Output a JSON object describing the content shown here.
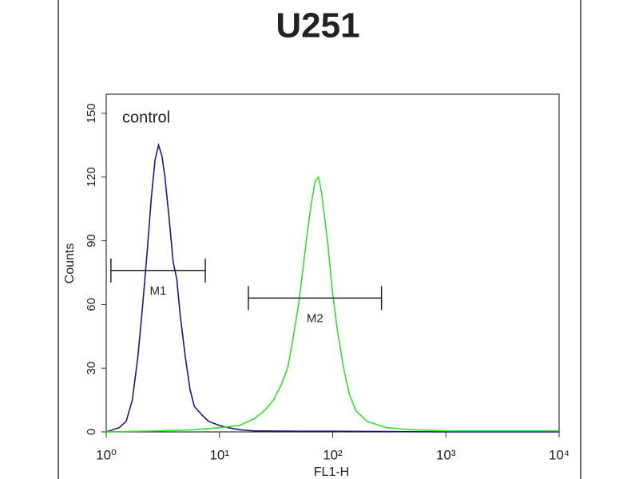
{
  "chart_data": {
    "type": "line",
    "title": "U251",
    "x_label": "FL1-H",
    "y_label": "Counts",
    "annotation": "control",
    "log_x": true,
    "xlim": [
      1,
      10000
    ],
    "xticks": [
      {
        "value": 1,
        "label": "10⁰"
      },
      {
        "value": 10,
        "label": "10¹"
      },
      {
        "value": 100,
        "label": "10²"
      },
      {
        "value": 1000,
        "label": "10³"
      },
      {
        "value": 10000,
        "label": "10⁴"
      }
    ],
    "ylim": [
      0,
      159
    ],
    "yticks": [
      0,
      30,
      60,
      90,
      120,
      150
    ],
    "series": [
      {
        "color": "#1a1a7a",
        "x": [
          1,
          1.3,
          1.5,
          1.7,
          1.9,
          2.1,
          2.3,
          2.5,
          2.7,
          2.9,
          3.1,
          3.3,
          3.6,
          3.9,
          4.2,
          4.5,
          5,
          5.5,
          6,
          7,
          8,
          10,
          12,
          15,
          20,
          50,
          100,
          1000,
          10000
        ],
        "values": [
          0,
          2,
          5,
          15,
          35,
          60,
          85,
          110,
          128,
          135,
          130,
          120,
          100,
          80,
          72,
          55,
          35,
          20,
          12,
          8,
          5,
          3,
          2,
          1,
          0.5,
          0.3,
          0.3,
          0,
          0
        ]
      },
      {
        "color": "#33dd33",
        "x": [
          1,
          3,
          6,
          10,
          15,
          20,
          25,
          30,
          35,
          40,
          45,
          50,
          55,
          60,
          65,
          70,
          75,
          80,
          90,
          100,
          110,
          125,
          140,
          160,
          200,
          300,
          500,
          1000,
          3000,
          10000
        ],
        "values": [
          0,
          0.5,
          1,
          2,
          3,
          6,
          10,
          15,
          22,
          30,
          45,
          60,
          78,
          95,
          108,
          118,
          120,
          112,
          90,
          65,
          48,
          30,
          18,
          10,
          5,
          2,
          1,
          0.5,
          0.5,
          0.5
        ]
      }
    ],
    "gates": [
      {
        "label": "M1",
        "x": [
          1.1,
          7.5
        ],
        "y": 76
      },
      {
        "label": "M2",
        "x": [
          18,
          270
        ],
        "y": 63
      }
    ]
  }
}
